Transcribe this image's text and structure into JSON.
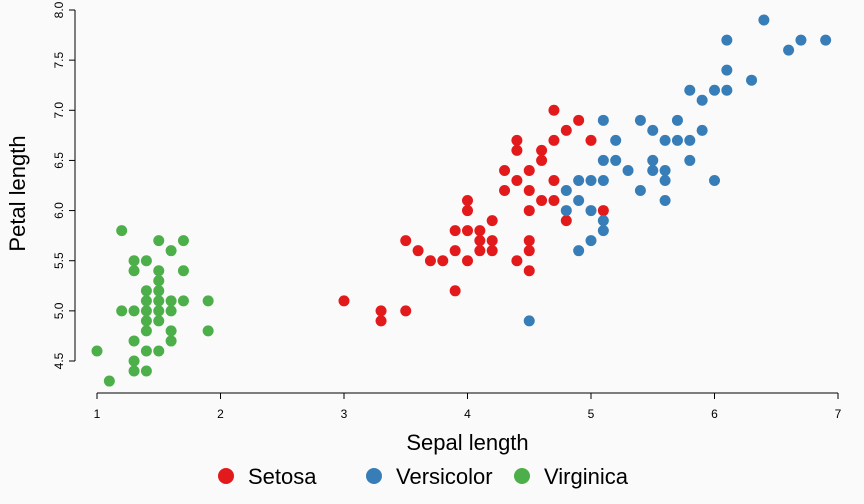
{
  "chart_data": {
    "type": "scatter",
    "title": "",
    "xlabel": "Sepal length",
    "ylabel": "Petal length",
    "xlim": [
      1,
      7
    ],
    "ylim": [
      4.5,
      8.0
    ],
    "x_ticks": [
      "1",
      "2",
      "3",
      "4",
      "5",
      "6",
      "7"
    ],
    "y_ticks": [
      "4.5",
      "5.0",
      "5.5",
      "6.0",
      "6.5",
      "7.0",
      "7.5",
      "8.0"
    ],
    "grid": false,
    "legend_position": "bottom",
    "series": [
      {
        "name": "Setosa",
        "color": "#e31a1c",
        "points": [
          [
            3.0,
            5.1
          ],
          [
            3.3,
            4.9
          ],
          [
            3.3,
            5.0
          ],
          [
            3.5,
            5.0
          ],
          [
            3.5,
            5.7
          ],
          [
            3.6,
            5.6
          ],
          [
            3.7,
            5.5
          ],
          [
            3.8,
            5.5
          ],
          [
            3.9,
            5.2
          ],
          [
            3.9,
            5.6
          ],
          [
            3.9,
            5.8
          ],
          [
            4.0,
            5.5
          ],
          [
            4.0,
            5.8
          ],
          [
            4.0,
            6.0
          ],
          [
            4.0,
            6.1
          ],
          [
            4.1,
            5.6
          ],
          [
            4.1,
            5.7
          ],
          [
            4.1,
            5.8
          ],
          [
            4.2,
            5.6
          ],
          [
            4.2,
            5.7
          ],
          [
            4.2,
            5.9
          ],
          [
            4.3,
            6.2
          ],
          [
            4.3,
            6.4
          ],
          [
            4.4,
            5.5
          ],
          [
            4.4,
            6.3
          ],
          [
            4.4,
            6.6
          ],
          [
            4.4,
            6.7
          ],
          [
            4.5,
            5.4
          ],
          [
            4.5,
            5.6
          ],
          [
            4.5,
            5.7
          ],
          [
            4.5,
            6.0
          ],
          [
            4.5,
            6.2
          ],
          [
            4.5,
            6.4
          ],
          [
            4.6,
            6.1
          ],
          [
            4.6,
            6.5
          ],
          [
            4.6,
            6.6
          ],
          [
            4.7,
            6.1
          ],
          [
            4.7,
            6.3
          ],
          [
            4.7,
            6.7
          ],
          [
            4.7,
            7.0
          ],
          [
            4.8,
            5.9
          ],
          [
            4.8,
            6.8
          ],
          [
            4.9,
            6.9
          ],
          [
            5.0,
            6.7
          ],
          [
            5.1,
            6.0
          ]
        ]
      },
      {
        "name": "Versicolor",
        "color": "#377eb8",
        "points": [
          [
            4.5,
            4.9
          ],
          [
            4.8,
            6.0
          ],
          [
            4.8,
            6.2
          ],
          [
            4.9,
            5.6
          ],
          [
            4.9,
            6.1
          ],
          [
            4.9,
            6.3
          ],
          [
            5.0,
            5.7
          ],
          [
            5.0,
            6.0
          ],
          [
            5.0,
            6.3
          ],
          [
            5.1,
            5.8
          ],
          [
            5.1,
            5.9
          ],
          [
            5.1,
            6.3
          ],
          [
            5.1,
            6.5
          ],
          [
            5.1,
            6.9
          ],
          [
            5.2,
            6.5
          ],
          [
            5.2,
            6.7
          ],
          [
            5.3,
            6.4
          ],
          [
            5.4,
            6.2
          ],
          [
            5.4,
            6.9
          ],
          [
            5.5,
            6.4
          ],
          [
            5.5,
            6.5
          ],
          [
            5.5,
            6.8
          ],
          [
            5.6,
            6.1
          ],
          [
            5.6,
            6.3
          ],
          [
            5.6,
            6.4
          ],
          [
            5.6,
            6.7
          ],
          [
            5.7,
            6.7
          ],
          [
            5.7,
            6.9
          ],
          [
            5.8,
            6.5
          ],
          [
            5.8,
            6.7
          ],
          [
            5.8,
            7.2
          ],
          [
            5.9,
            6.8
          ],
          [
            5.9,
            7.1
          ],
          [
            6.0,
            6.3
          ],
          [
            6.0,
            7.2
          ],
          [
            6.1,
            7.2
          ],
          [
            6.1,
            7.4
          ],
          [
            6.1,
            7.7
          ],
          [
            6.3,
            7.3
          ],
          [
            6.4,
            7.9
          ],
          [
            6.6,
            7.6
          ],
          [
            6.7,
            7.7
          ],
          [
            6.9,
            7.7
          ]
        ]
      },
      {
        "name": "Virginica",
        "color": "#4daf4a",
        "points": [
          [
            1.0,
            4.6
          ],
          [
            1.1,
            4.3
          ],
          [
            1.2,
            5.0
          ],
          [
            1.2,
            5.8
          ],
          [
            1.3,
            4.4
          ],
          [
            1.3,
            4.5
          ],
          [
            1.3,
            4.7
          ],
          [
            1.3,
            5.0
          ],
          [
            1.3,
            5.4
          ],
          [
            1.3,
            5.5
          ],
          [
            1.4,
            4.4
          ],
          [
            1.4,
            4.6
          ],
          [
            1.4,
            4.8
          ],
          [
            1.4,
            4.9
          ],
          [
            1.4,
            5.0
          ],
          [
            1.4,
            5.1
          ],
          [
            1.4,
            5.2
          ],
          [
            1.4,
            5.5
          ],
          [
            1.5,
            4.6
          ],
          [
            1.5,
            4.9
          ],
          [
            1.5,
            5.0
          ],
          [
            1.5,
            5.1
          ],
          [
            1.5,
            5.2
          ],
          [
            1.5,
            5.3
          ],
          [
            1.5,
            5.4
          ],
          [
            1.5,
            5.7
          ],
          [
            1.6,
            4.7
          ],
          [
            1.6,
            4.8
          ],
          [
            1.6,
            5.0
          ],
          [
            1.6,
            5.1
          ],
          [
            1.6,
            5.6
          ],
          [
            1.7,
            5.1
          ],
          [
            1.7,
            5.4
          ],
          [
            1.7,
            5.7
          ],
          [
            1.9,
            4.8
          ],
          [
            1.9,
            5.1
          ]
        ]
      }
    ]
  }
}
